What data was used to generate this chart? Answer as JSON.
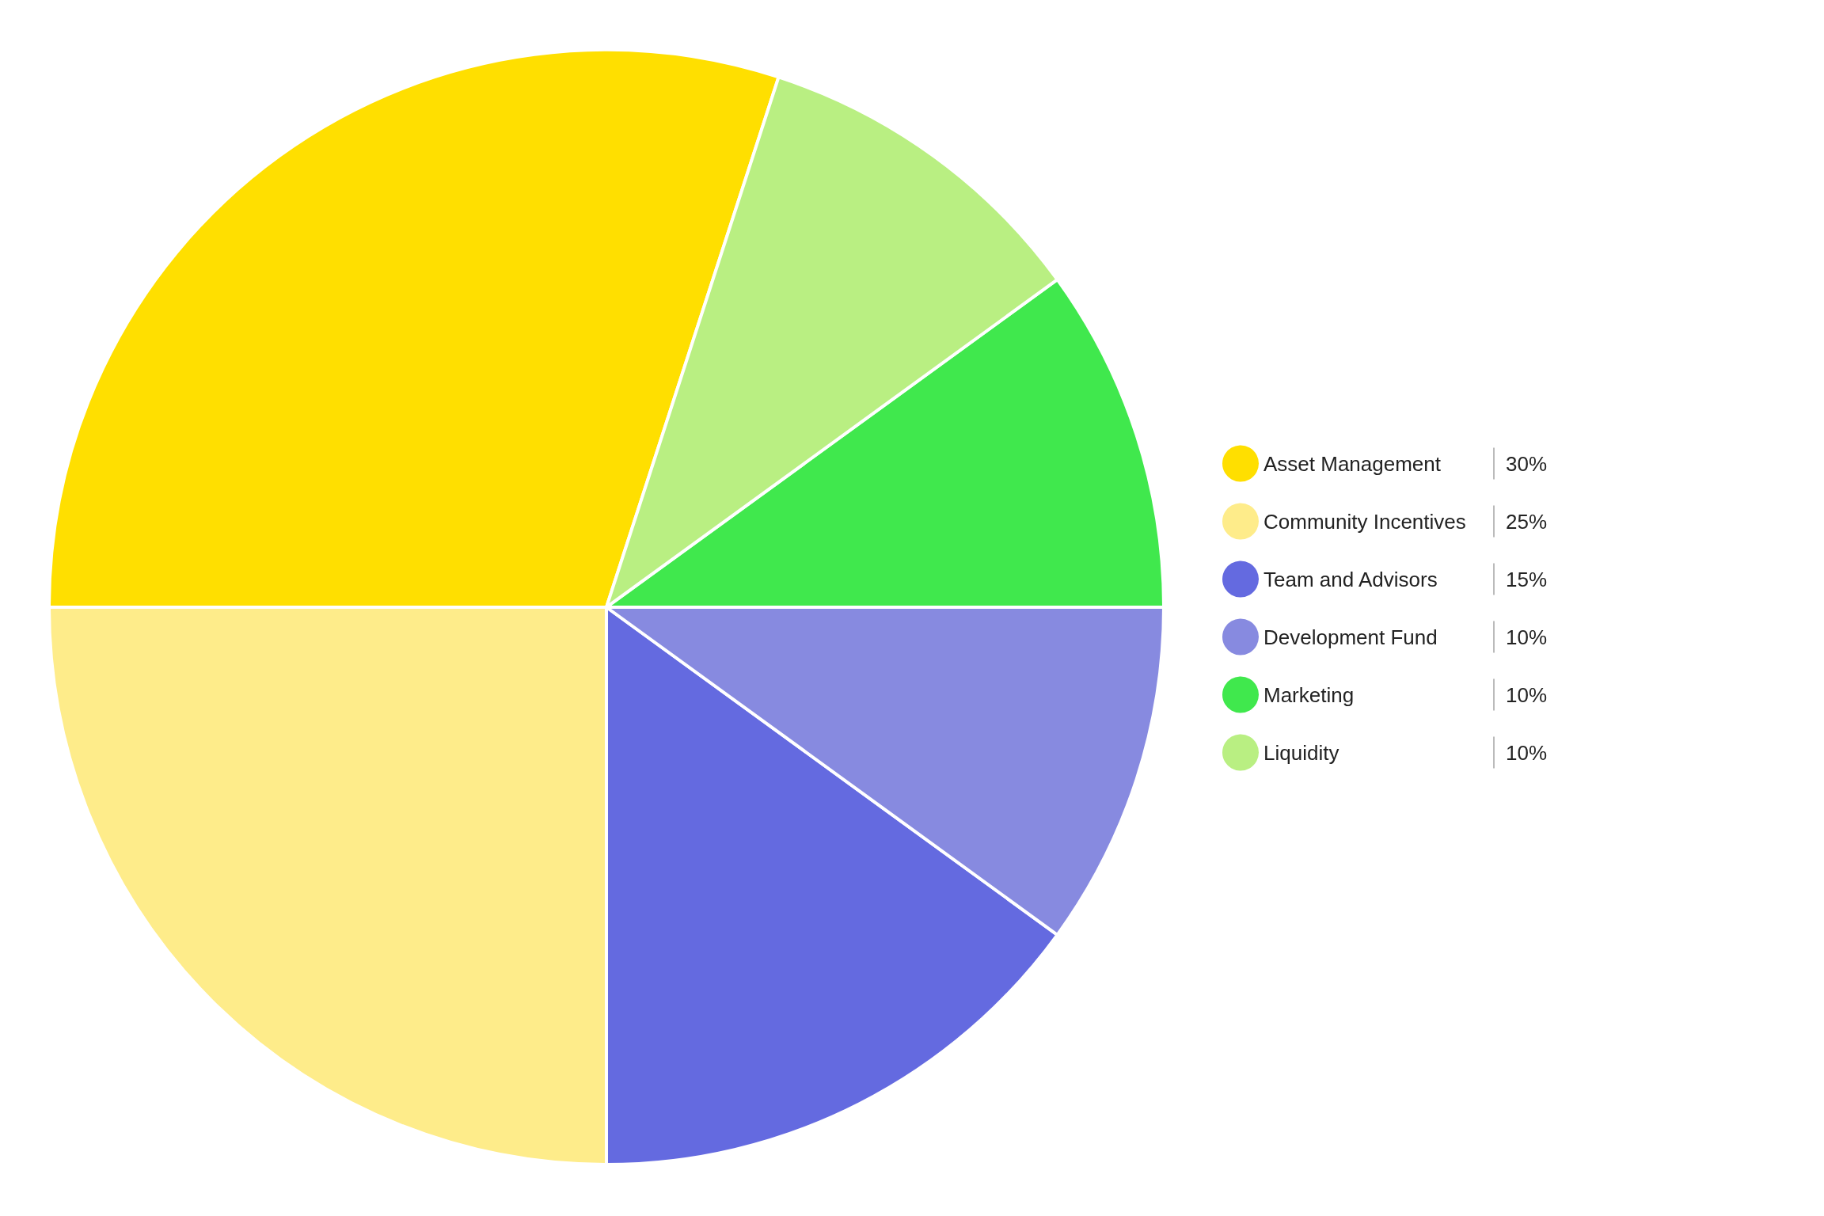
{
  "chart_data": {
    "type": "pie",
    "categories": [
      "Asset Management",
      "Community Incentives",
      "Team and Advisors",
      "Development Fund",
      "Marketing",
      "Liquidity"
    ],
    "values": [
      30,
      25,
      15,
      10,
      10,
      10
    ],
    "colors": [
      "#ffdf00",
      "#feec8a",
      "#646ae0",
      "#878ae0",
      "#40e84d",
      "#b9ef82"
    ],
    "value_labels": [
      "30%",
      "25%",
      "15%",
      "10%",
      "10%",
      "10%"
    ],
    "legend": "right"
  }
}
